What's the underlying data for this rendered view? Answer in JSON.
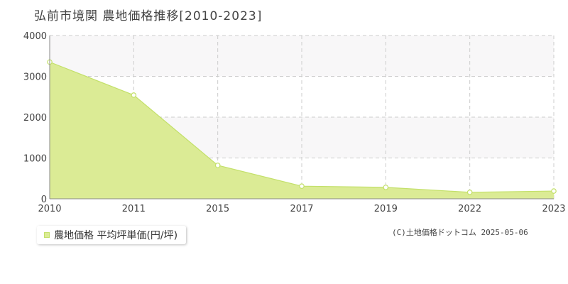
{
  "title": "弘前市境関 農地価格推移[2010-2023]",
  "legend_label": "農地価格 平均坪単価(円/坪)",
  "copyright": "(C)土地価格ドットコム 2025-05-06",
  "colors": {
    "fill": "#dbeb95",
    "line": "#c3e06a",
    "marker_stroke": "#c3e06a",
    "band": "#f8f7f8",
    "grid": "#cccccc",
    "axis": "#888888"
  },
  "chart_data": {
    "type": "area",
    "title": "弘前市境関 農地価格推移[2010-2023]",
    "xlabel": "",
    "ylabel": "",
    "categories": [
      "2010",
      "2011",
      "2015",
      "2017",
      "2019",
      "2022",
      "2023"
    ],
    "series": [
      {
        "name": "農地価格 平均坪単価(円/坪)",
        "values": [
          3350,
          2540,
          820,
          310,
          280,
          160,
          190
        ]
      }
    ],
    "yticks": [
      "0",
      "1000",
      "2000",
      "3000",
      "4000"
    ],
    "ylim": [
      0,
      4000
    ],
    "grid": true,
    "legend": "bottom-left"
  }
}
